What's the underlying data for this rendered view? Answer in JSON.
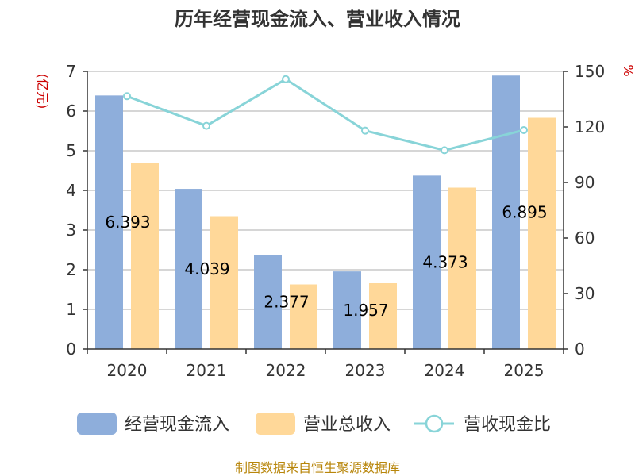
{
  "chart_data": {
    "type": "bar",
    "title": "历年经营现金流入、营业收入情况",
    "left_unit": "(亿元)",
    "right_unit": "%",
    "categories": [
      "2020",
      "2021",
      "2022",
      "2023",
      "2024",
      "2025"
    ],
    "left_ylim": [
      0,
      7
    ],
    "left_ticks": [
      "0",
      "1",
      "2",
      "3",
      "4",
      "5",
      "6",
      "7"
    ],
    "right_ylim": [
      0,
      150
    ],
    "right_ticks": [
      "0",
      "30",
      "60",
      "90",
      "120",
      "150"
    ],
    "grid": true,
    "legend_position": "bottom",
    "series": [
      {
        "name": "经营现金流入",
        "type": "bar",
        "axis": "left",
        "color": "#8eaedb",
        "values": [
          6.393,
          4.039,
          2.377,
          1.957,
          4.373,
          6.895
        ],
        "labels": [
          "6.393",
          "4.039",
          "2.377",
          "1.957",
          "4.373",
          "6.895"
        ]
      },
      {
        "name": "营业总收入",
        "type": "bar",
        "axis": "left",
        "color": "#ffd899",
        "values": [
          4.68,
          3.35,
          1.63,
          1.66,
          4.07,
          5.83
        ]
      },
      {
        "name": "营收现金比",
        "type": "line",
        "axis": "right",
        "color": "#88d4d8",
        "values": [
          136.6,
          120.6,
          145.8,
          118.0,
          107.4,
          118.3
        ]
      }
    ],
    "source": "制图数据来自恒生聚源数据库"
  }
}
